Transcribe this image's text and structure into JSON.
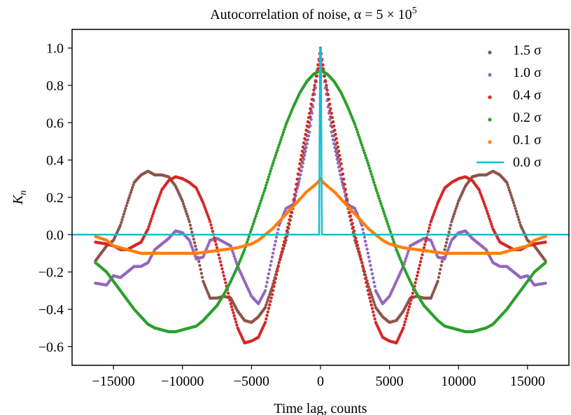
{
  "chart_data": {
    "type": "scatter",
    "title": "Autocorrelation of noise,  α = 5 × 10",
    "title_superscript": "5",
    "xlabel": "Time lag, counts",
    "ylabel": "K",
    "ylabel_subscript": "n",
    "xlim": [
      -18000,
      18000
    ],
    "ylim": [
      -0.7,
      1.1
    ],
    "xticks": [
      -15000,
      -10000,
      -5000,
      0,
      5000,
      10000,
      15000
    ],
    "xtick_labels": [
      "−15000",
      "−10000",
      "−5000",
      "0",
      "5000",
      "10000",
      "15000"
    ],
    "yticks": [
      1.0,
      0.8,
      0.6,
      0.4,
      0.2,
      0.0,
      -0.2,
      -0.4,
      -0.6
    ],
    "ytick_labels": [
      "1.0",
      "0.8",
      "0.6",
      "0.4",
      "0.2",
      "0.0",
      "−0.2",
      "−0.4",
      "−0.6"
    ],
    "grid": false,
    "legend_position": "top-right",
    "series": [
      {
        "name": "1.5 σ",
        "color": "#8c564b",
        "style": "dots",
        "symmetric": true,
        "points": [
          [
            0,
            1.0
          ],
          [
            300,
            0.85
          ],
          [
            800,
            0.6
          ],
          [
            1500,
            0.32
          ],
          [
            2000,
            0.14
          ],
          [
            2500,
            -0.03
          ],
          [
            3000,
            -0.15
          ],
          [
            3500,
            -0.28
          ],
          [
            4000,
            -0.39
          ],
          [
            4500,
            -0.44
          ],
          [
            5000,
            -0.47
          ],
          [
            5500,
            -0.46
          ],
          [
            6000,
            -0.41
          ],
          [
            6500,
            -0.34
          ],
          [
            7000,
            -0.33
          ],
          [
            7500,
            -0.34
          ],
          [
            8000,
            -0.34
          ],
          [
            8500,
            -0.25
          ],
          [
            9000,
            -0.08
          ],
          [
            9500,
            0.07
          ],
          [
            10000,
            0.18
          ],
          [
            10500,
            0.26
          ],
          [
            11000,
            0.31
          ],
          [
            11500,
            0.32
          ],
          [
            12000,
            0.32
          ],
          [
            12500,
            0.34
          ],
          [
            13000,
            0.32
          ],
          [
            13500,
            0.28
          ],
          [
            14000,
            0.17
          ],
          [
            14500,
            0.05
          ],
          [
            15000,
            -0.03
          ],
          [
            15500,
            -0.06
          ],
          [
            16300,
            -0.14
          ]
        ]
      },
      {
        "name": "1.0 σ",
        "color": "#9467bd",
        "style": "dots",
        "symmetric": true,
        "points": [
          [
            0,
            0.97
          ],
          [
            300,
            0.82
          ],
          [
            800,
            0.55
          ],
          [
            1500,
            0.3
          ],
          [
            2000,
            0.16
          ],
          [
            2500,
            0.14
          ],
          [
            3000,
            0.05
          ],
          [
            3500,
            -0.12
          ],
          [
            4000,
            -0.3
          ],
          [
            4500,
            -0.37
          ],
          [
            5000,
            -0.33
          ],
          [
            5500,
            -0.25
          ],
          [
            6000,
            -0.17
          ],
          [
            6500,
            -0.06
          ],
          [
            7000,
            -0.04
          ],
          [
            7500,
            -0.02
          ],
          [
            8000,
            -0.03
          ],
          [
            8500,
            -0.12
          ],
          [
            9000,
            -0.13
          ],
          [
            9500,
            -0.03
          ],
          [
            10000,
            0.01
          ],
          [
            10500,
            0.02
          ],
          [
            11000,
            -0.02
          ],
          [
            11500,
            -0.05
          ],
          [
            12000,
            -0.08
          ],
          [
            12500,
            -0.15
          ],
          [
            13000,
            -0.17
          ],
          [
            13500,
            -0.17
          ],
          [
            14000,
            -0.2
          ],
          [
            14500,
            -0.23
          ],
          [
            15000,
            -0.22
          ],
          [
            15500,
            -0.27
          ],
          [
            16300,
            -0.26
          ]
        ]
      },
      {
        "name": "0.4 σ",
        "color": "#d62728",
        "style": "dots",
        "symmetric": true,
        "points": [
          [
            0,
            0.95
          ],
          [
            300,
            0.85
          ],
          [
            800,
            0.65
          ],
          [
            1500,
            0.38
          ],
          [
            2000,
            0.16
          ],
          [
            2500,
            0.0
          ],
          [
            3000,
            -0.15
          ],
          [
            3500,
            -0.32
          ],
          [
            4000,
            -0.47
          ],
          [
            4500,
            -0.55
          ],
          [
            5000,
            -0.57
          ],
          [
            5500,
            -0.58
          ],
          [
            6000,
            -0.5
          ],
          [
            6500,
            -0.37
          ],
          [
            7000,
            -0.22
          ],
          [
            7500,
            -0.07
          ],
          [
            8000,
            0.07
          ],
          [
            8500,
            0.17
          ],
          [
            9000,
            0.25
          ],
          [
            9500,
            0.28
          ],
          [
            10000,
            0.3
          ],
          [
            10500,
            0.31
          ],
          [
            11000,
            0.29
          ],
          [
            11500,
            0.24
          ],
          [
            12000,
            0.14
          ],
          [
            12500,
            0.03
          ],
          [
            13000,
            -0.04
          ],
          [
            13500,
            -0.06
          ],
          [
            14000,
            -0.08
          ],
          [
            14500,
            -0.08
          ],
          [
            15000,
            -0.06
          ],
          [
            15500,
            -0.05
          ],
          [
            16300,
            -0.04
          ]
        ]
      },
      {
        "name": "0.2 σ",
        "color": "#2ca02c",
        "style": "dots",
        "symmetric": true,
        "points": [
          [
            0,
            0.88
          ],
          [
            500,
            0.86
          ],
          [
            1000,
            0.82
          ],
          [
            1500,
            0.76
          ],
          [
            2000,
            0.68
          ],
          [
            2500,
            0.59
          ],
          [
            3000,
            0.48
          ],
          [
            3500,
            0.37
          ],
          [
            4000,
            0.25
          ],
          [
            4500,
            0.14
          ],
          [
            5000,
            0.03
          ],
          [
            5500,
            -0.08
          ],
          [
            6000,
            -0.17
          ],
          [
            6500,
            -0.25
          ],
          [
            7000,
            -0.32
          ],
          [
            7500,
            -0.38
          ],
          [
            8000,
            -0.42
          ],
          [
            8500,
            -0.46
          ],
          [
            9000,
            -0.49
          ],
          [
            9500,
            -0.5
          ],
          [
            10000,
            -0.51
          ],
          [
            10500,
            -0.52
          ],
          [
            11000,
            -0.52
          ],
          [
            11500,
            -0.51
          ],
          [
            12000,
            -0.5
          ],
          [
            12500,
            -0.48
          ],
          [
            13000,
            -0.44
          ],
          [
            13500,
            -0.4
          ],
          [
            14000,
            -0.35
          ],
          [
            14500,
            -0.3
          ],
          [
            15000,
            -0.25
          ],
          [
            15500,
            -0.2
          ],
          [
            16300,
            -0.15
          ]
        ]
      },
      {
        "name": "0.1 σ",
        "color": "#ff7f0e",
        "style": "dots",
        "symmetric": true,
        "points": [
          [
            0,
            0.3
          ],
          [
            200,
            0.28
          ],
          [
            500,
            0.26
          ],
          [
            1000,
            0.23
          ],
          [
            1500,
            0.19
          ],
          [
            2000,
            0.15
          ],
          [
            2500,
            0.11
          ],
          [
            3000,
            0.07
          ],
          [
            3500,
            0.03
          ],
          [
            4000,
            0.0
          ],
          [
            4500,
            -0.03
          ],
          [
            5000,
            -0.05
          ],
          [
            5500,
            -0.06
          ],
          [
            6000,
            -0.07
          ],
          [
            7000,
            -0.08
          ],
          [
            8000,
            -0.09
          ],
          [
            9000,
            -0.1
          ],
          [
            10000,
            -0.1
          ],
          [
            11000,
            -0.1
          ],
          [
            12000,
            -0.1
          ],
          [
            13000,
            -0.1
          ],
          [
            14000,
            -0.08
          ],
          [
            15000,
            -0.06
          ],
          [
            15500,
            -0.03
          ],
          [
            16300,
            -0.01
          ]
        ]
      },
      {
        "name": "0.0 σ",
        "color": "#17becf",
        "style": "line",
        "symmetric": false,
        "points": [
          [
            -18000,
            0.0
          ],
          [
            -100,
            0.0
          ],
          [
            -30,
            1.0
          ],
          [
            30,
            1.0
          ],
          [
            100,
            0.0
          ],
          [
            18000,
            0.0
          ]
        ]
      }
    ]
  }
}
